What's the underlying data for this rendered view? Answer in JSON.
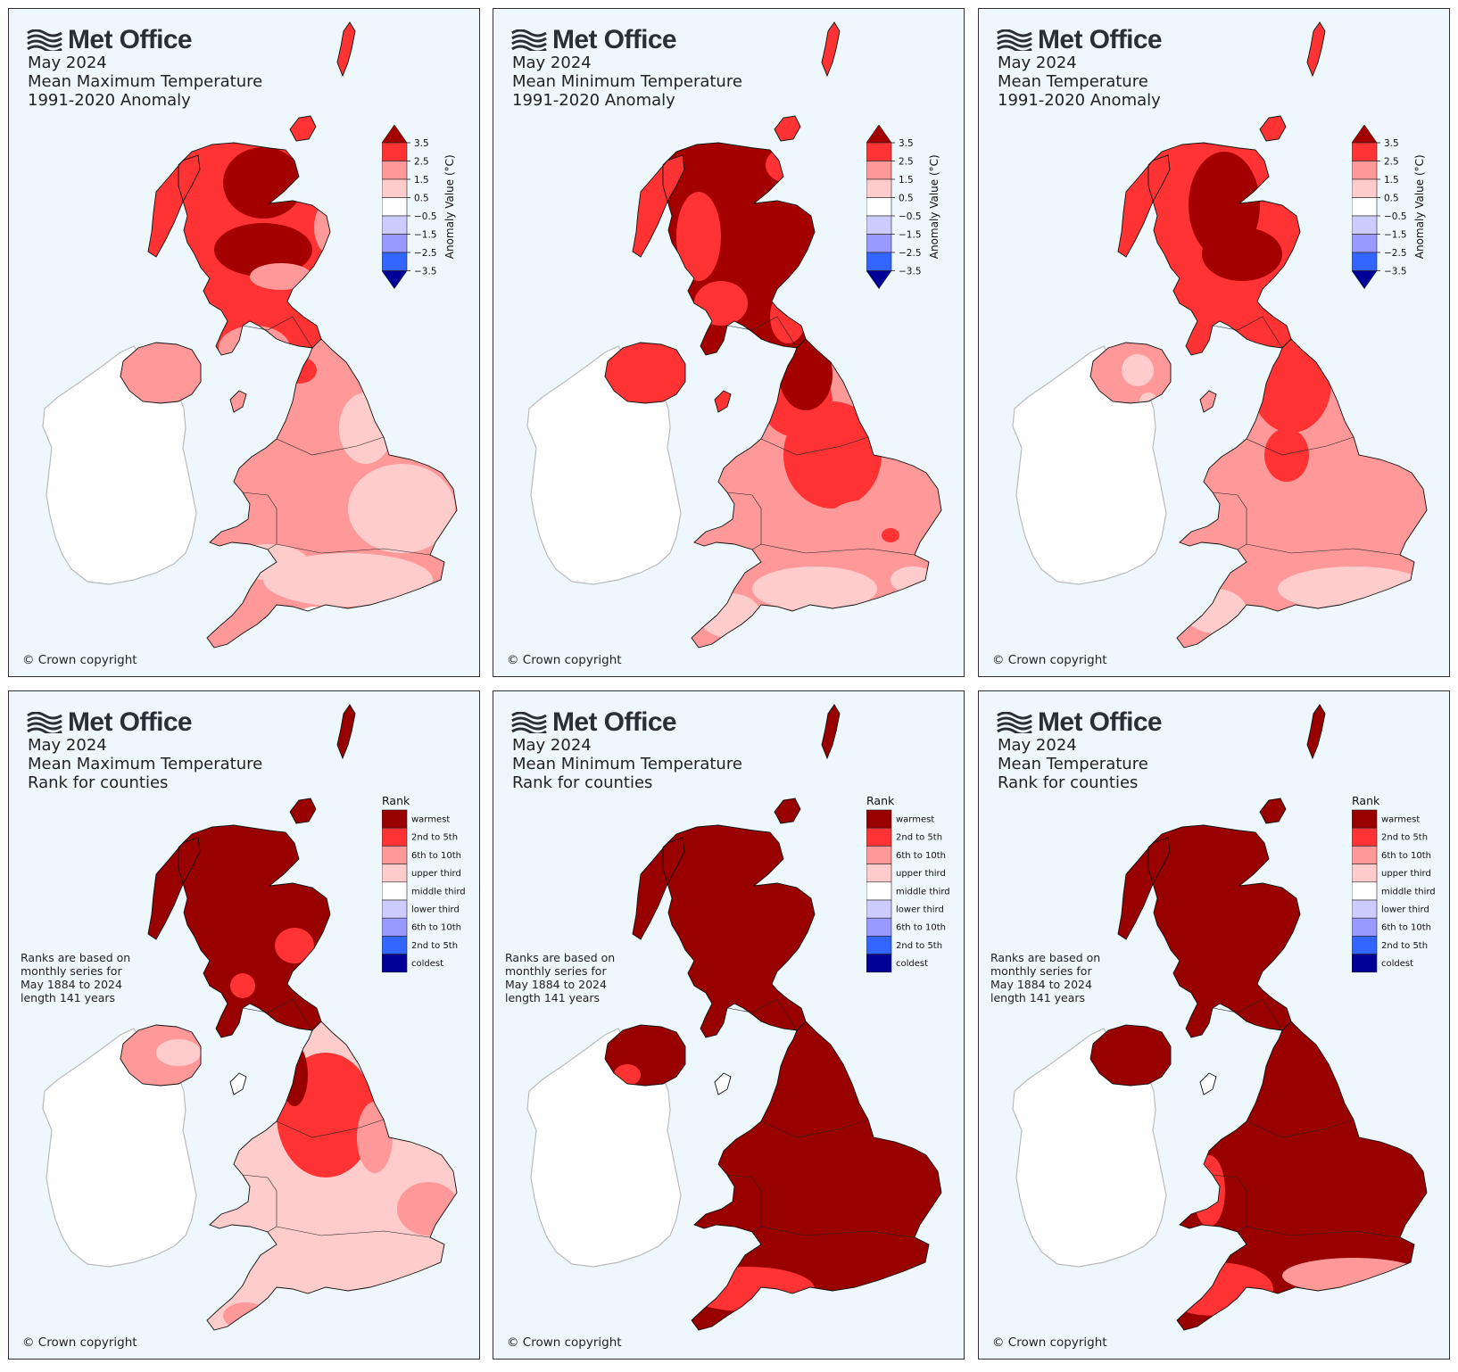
{
  "logo": {
    "text": "Met Office"
  },
  "copyright": "© Crown copyright",
  "anomaly_legend": {
    "label": "Anomaly Value (°C)",
    "ticks": [
      "3.5",
      "2.5",
      "1.5",
      "0.5",
      "−0.5",
      "−1.5",
      "−2.5",
      "−3.5"
    ],
    "colors": [
      "#a50000",
      "#ff3333",
      "#ff9999",
      "#ffcccc",
      "#ffffff",
      "#ccccff",
      "#9999ff",
      "#3366ff",
      "#000099"
    ]
  },
  "rank_legend": {
    "title": "Rank",
    "entries": [
      {
        "label": "warmest",
        "color": "#990000"
      },
      {
        "label": "2nd to 5th",
        "color": "#ff3333"
      },
      {
        "label": "6th to 10th",
        "color": "#ff9999"
      },
      {
        "label": "upper third",
        "color": "#ffcccc"
      },
      {
        "label": "middle third",
        "color": "#ffffff"
      },
      {
        "label": "lower third",
        "color": "#ccccff"
      },
      {
        "label": "6th to 10th",
        "color": "#9999ff"
      },
      {
        "label": "2nd to 5th",
        "color": "#3366ff"
      },
      {
        "label": "coldest",
        "color": "#000099"
      }
    ]
  },
  "rank_note": [
    "Ranks are based on",
    "monthly series for",
    "May 1884 to 2024",
    "length 141 years"
  ],
  "panels": [
    {
      "line1": "May 2024",
      "line2": "Mean Maximum Temperature",
      "line3": "1991-2020 Anomaly",
      "kind": "anomaly",
      "scheme": "maxAnom"
    },
    {
      "line1": "May 2024",
      "line2": "Mean Minimum Temperature",
      "line3": "1991-2020 Anomaly",
      "kind": "anomaly",
      "scheme": "minAnom"
    },
    {
      "line1": "May 2024",
      "line2": "Mean Temperature",
      "line3": "1991-2020 Anomaly",
      "kind": "anomaly",
      "scheme": "meanAnom"
    },
    {
      "line1": "May 2024",
      "line2": "Mean Maximum Temperature",
      "line3": "Rank for counties",
      "kind": "rank",
      "scheme": "maxRank"
    },
    {
      "line1": "May 2024",
      "line2": "Mean Minimum Temperature",
      "line3": "Rank for counties",
      "kind": "rank",
      "scheme": "minRank"
    },
    {
      "line1": "May 2024",
      "line2": "Mean Temperature",
      "line3": "Rank for counties",
      "kind": "rank",
      "scheme": "meanRank"
    }
  ]
}
